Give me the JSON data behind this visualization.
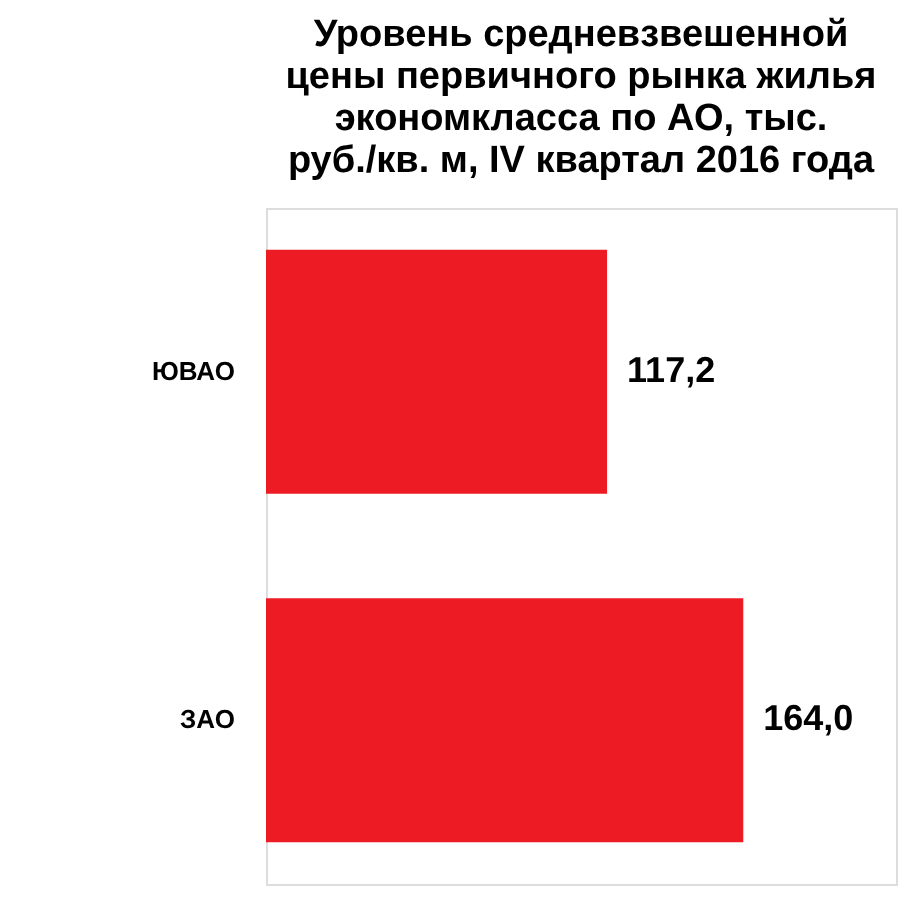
{
  "chart_data": {
    "type": "bar",
    "orientation": "horizontal",
    "title": "Уровень средневзвешенной\nцены первичного рынка жилья\nэкономкласса  по АО, тыс.\nруб./кв. м, IV квартал 2016 года",
    "categories": [
      "ЮВАО",
      "ЗАО"
    ],
    "values": [
      117.2,
      164.0
    ],
    "color": "#ed1c24",
    "value_labels": [
      "117,2",
      "164,0"
    ]
  }
}
